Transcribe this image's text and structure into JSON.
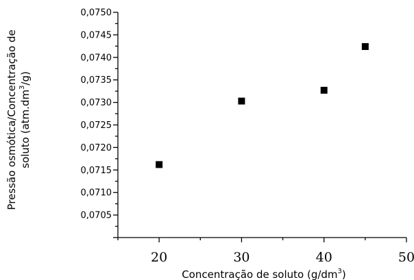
{
  "chart_data": {
    "type": "scatter",
    "title": "",
    "xlabel_prefix": "Concentração de soluto (g/dm",
    "xlabel_sup": "3",
    "xlabel_suffix": ")",
    "ylabel_line1": "Pressão osmótica/Concentração de",
    "ylabel_line2_prefix": "soluto (atm.dm",
    "ylabel_line2_sup": "3",
    "ylabel_line2_suffix": "/g)",
    "xlim": [
      15,
      50
    ],
    "ylim": [
      0.07,
      0.075
    ],
    "xticks": [
      20,
      30,
      40,
      50
    ],
    "xtick_labels": [
      "20",
      "30",
      "40",
      "50"
    ],
    "xminor_step": 5,
    "yticks": [
      0.0705,
      0.071,
      0.0715,
      0.072,
      0.0725,
      0.073,
      0.0735,
      0.074,
      0.0745,
      0.075
    ],
    "ytick_labels": [
      "0,0705",
      "0,0710",
      "0,0715",
      "0,0720",
      "0,0725",
      "0,0730",
      "0,0735",
      "0,0740",
      "0,0745",
      "0,0750"
    ],
    "yminor_step": 0.00025,
    "grid": false,
    "legend": "none",
    "marker": "square",
    "color": "#000000",
    "series": [
      {
        "x": [
          20,
          30,
          40,
          45
        ],
        "y": [
          0.07162,
          0.07303,
          0.07327,
          0.07424
        ]
      }
    ]
  }
}
